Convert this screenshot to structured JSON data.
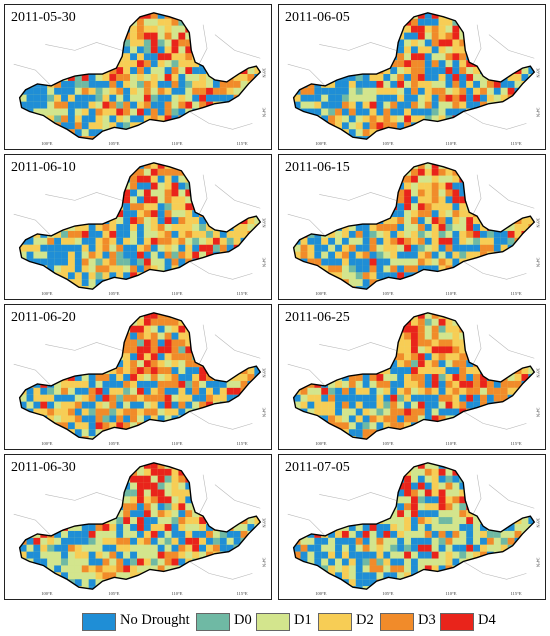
{
  "axes": {
    "x_ticks": [
      "100°E",
      "105°E",
      "110°E",
      "115°E"
    ],
    "y_ticks": [
      "38°N",
      "34°N"
    ]
  },
  "panels": [
    {
      "date": "2011-05-30",
      "blue": 0.3,
      "d0": 0.05,
      "d1": 0.2,
      "d2": 0.22,
      "d3": 0.16,
      "d4": 0.07
    },
    {
      "date": "2011-06-05",
      "blue": 0.28,
      "d0": 0.05,
      "d1": 0.2,
      "d2": 0.22,
      "d3": 0.18,
      "d4": 0.07
    },
    {
      "date": "2011-06-10",
      "blue": 0.25,
      "d0": 0.05,
      "d1": 0.2,
      "d2": 0.25,
      "d3": 0.17,
      "d4": 0.08
    },
    {
      "date": "2011-06-15",
      "blue": 0.25,
      "d0": 0.05,
      "d1": 0.2,
      "d2": 0.24,
      "d3": 0.18,
      "d4": 0.08
    },
    {
      "date": "2011-06-20",
      "blue": 0.22,
      "d0": 0.04,
      "d1": 0.15,
      "d2": 0.22,
      "d3": 0.27,
      "d4": 0.1
    },
    {
      "date": "2011-06-25",
      "blue": 0.25,
      "d0": 0.04,
      "d1": 0.15,
      "d2": 0.22,
      "d3": 0.25,
      "d4": 0.09
    },
    {
      "date": "2011-06-30",
      "blue": 0.25,
      "d0": 0.04,
      "d1": 0.3,
      "d2": 0.18,
      "d3": 0.13,
      "d4": 0.1
    },
    {
      "date": "2011-07-05",
      "blue": 0.33,
      "d0": 0.04,
      "d1": 0.28,
      "d2": 0.15,
      "d3": 0.12,
      "d4": 0.08
    }
  ],
  "legend": [
    {
      "label": "No Drought",
      "color": "#1f8ed6"
    },
    {
      "label": "D0",
      "color": "#6fb9a4"
    },
    {
      "label": "D1",
      "color": "#d3e58d"
    },
    {
      "label": "D2",
      "color": "#f7cd55"
    },
    {
      "label": "D3",
      "color": "#f18b2a"
    },
    {
      "label": "D4",
      "color": "#e9241b"
    }
  ]
}
